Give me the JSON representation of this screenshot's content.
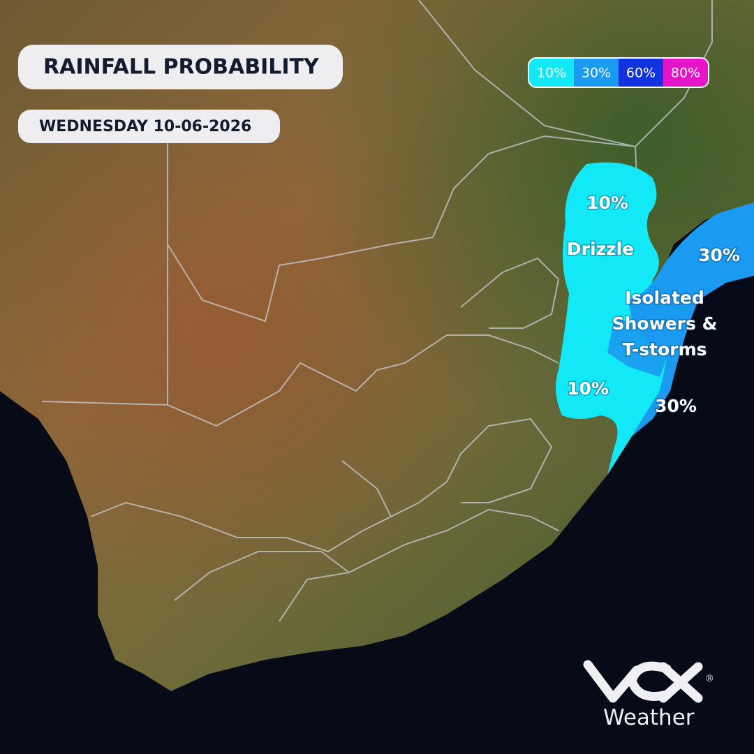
{
  "header": {
    "title": "RAINFALL PROBABILITY",
    "date": "WEDNESDAY 10-06-2026"
  },
  "legend": [
    {
      "label": "10%",
      "color": "#12e8f6"
    },
    {
      "label": "30%",
      "color": "#1a9af0"
    },
    {
      "label": "60%",
      "color": "#1232e0"
    },
    {
      "label": "80%",
      "color": "#e614c8"
    }
  ],
  "map_labels": [
    {
      "lines": [
        "10%"
      ]
    },
    {
      "lines": [
        "Drizzle"
      ]
    },
    {
      "lines": [
        "30%"
      ]
    },
    {
      "lines": [
        "Isolated",
        "Showers &",
        "T-storms"
      ]
    },
    {
      "lines": [
        "10%"
      ]
    },
    {
      "lines": [
        "30%"
      ]
    }
  ],
  "logo": {
    "text": "Weather",
    "mark": "®"
  }
}
